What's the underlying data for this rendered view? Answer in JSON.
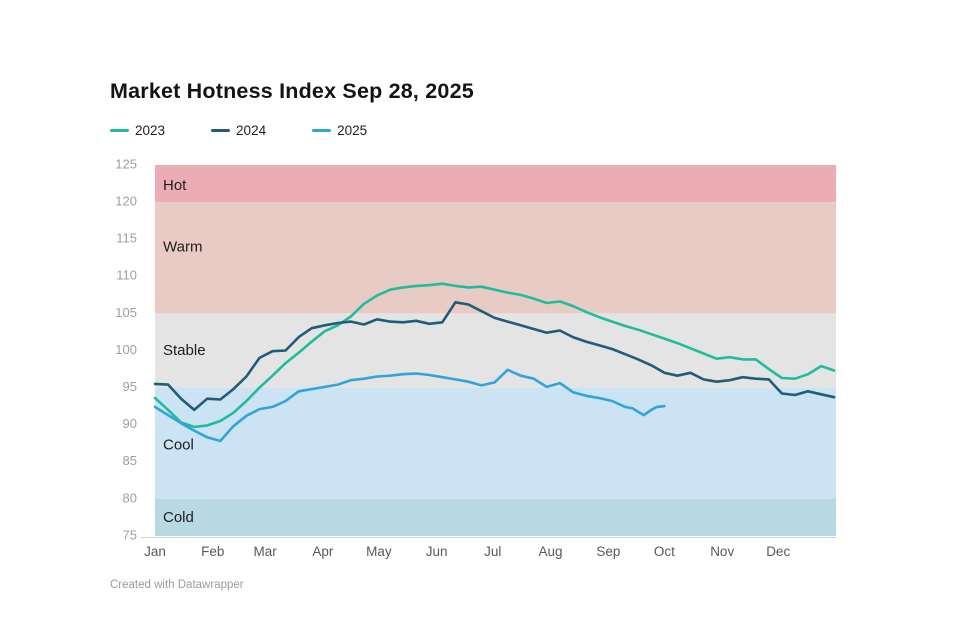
{
  "page": {
    "title": "Market Hotness Index Sep 28, 2025",
    "footer": "Created with Datawrapper"
  },
  "legend": {
    "items": [
      {
        "label": "2023",
        "color": "#1fbd9c"
      },
      {
        "label": "2024",
        "color": "#205d78"
      },
      {
        "label": "2025",
        "color": "#2fa5dc"
      }
    ]
  },
  "chart_data": {
    "type": "line",
    "title": "Market Hotness Index Sep 28, 2025",
    "xlabel": "",
    "ylabel": "",
    "legend_position": "top-left",
    "grid": false,
    "y_axis": {
      "min": 75,
      "max": 125,
      "ticks": [
        75,
        80,
        85,
        90,
        95,
        100,
        105,
        110,
        115,
        120,
        125
      ]
    },
    "x_axis": {
      "max_day": 365,
      "labels": [
        "Jan",
        "Feb",
        "Mar",
        "Apr",
        "May",
        "Jun",
        "Jul",
        "Aug",
        "Sep",
        "Oct",
        "Nov",
        "Dec"
      ],
      "month_start_days": [
        0,
        31,
        59,
        90,
        120,
        151,
        181,
        212,
        243,
        273,
        304,
        334
      ]
    },
    "bands": [
      {
        "label": "Hot",
        "from": 120,
        "to": 125,
        "color": "#ecacb3",
        "label_value": 122.2
      },
      {
        "label": "Warm",
        "from": 105,
        "to": 120,
        "color": "#e9cbc5",
        "label_value": 113.9
      },
      {
        "label": "Stable",
        "from": 95,
        "to": 105,
        "color": "#e4e4e4",
        "label_value": 99.9
      },
      {
        "label": "Cool",
        "from": 80,
        "to": 95,
        "color": "#cbe3f2",
        "label_value": 87.2
      },
      {
        "label": "Cold",
        "from": 75,
        "to": 80,
        "color": "#b8d8e2",
        "label_value": 77.4
      }
    ],
    "series": [
      {
        "name": "2023",
        "color": "#1fbd9c",
        "days": [
          0,
          7,
          14,
          21,
          28,
          35,
          42,
          49,
          56,
          63,
          70,
          77,
          84,
          91,
          98,
          105,
          112,
          119,
          126,
          133,
          140,
          147,
          154,
          161,
          168,
          175,
          182,
          189,
          196,
          203,
          210,
          217,
          224,
          231,
          238,
          245,
          252,
          259,
          266,
          273,
          280,
          287,
          294,
          301,
          308,
          315,
          322,
          329,
          336,
          343,
          350,
          357,
          364
        ],
        "values": [
          93.6,
          92.0,
          90.3,
          89.7,
          89.9,
          90.5,
          91.6,
          93.2,
          95.0,
          96.6,
          98.3,
          99.7,
          101.2,
          102.6,
          103.4,
          104.6,
          106.3,
          107.4,
          108.2,
          108.5,
          108.7,
          108.8,
          109.0,
          108.7,
          108.5,
          108.6,
          108.2,
          107.8,
          107.5,
          107.0,
          106.4,
          106.6,
          106.0,
          105.2,
          104.5,
          103.9,
          103.3,
          102.8,
          102.2,
          101.6,
          101.0,
          100.3,
          99.6,
          98.9,
          99.1,
          98.8,
          98.8,
          97.5,
          96.3,
          96.2,
          96.8,
          97.9,
          97.3
        ]
      },
      {
        "name": "2024",
        "color": "#205d78",
        "days": [
          0,
          7,
          14,
          21,
          28,
          35,
          42,
          49,
          56,
          63,
          70,
          77,
          84,
          91,
          98,
          105,
          112,
          119,
          126,
          133,
          140,
          147,
          154,
          161,
          168,
          175,
          182,
          189,
          196,
          203,
          210,
          217,
          224,
          231,
          238,
          245,
          252,
          259,
          266,
          273,
          280,
          287,
          294,
          301,
          308,
          315,
          322,
          329,
          336,
          343,
          350,
          357,
          364
        ],
        "values": [
          95.5,
          95.4,
          93.5,
          92.0,
          93.5,
          93.4,
          94.8,
          96.5,
          99.0,
          99.9,
          100.0,
          101.8,
          103.0,
          103.4,
          103.7,
          103.9,
          103.5,
          104.2,
          103.9,
          103.8,
          104.0,
          103.6,
          103.8,
          106.5,
          106.2,
          105.3,
          104.4,
          103.9,
          103.4,
          102.9,
          102.4,
          102.7,
          101.8,
          101.2,
          100.7,
          100.2,
          99.5,
          98.8,
          98.0,
          97.0,
          96.6,
          97.0,
          96.1,
          95.8,
          96.0,
          96.4,
          96.2,
          96.1,
          94.2,
          94.0,
          94.5,
          94.1,
          93.7
        ]
      },
      {
        "name": "2025",
        "color": "#2fa5dc",
        "days": [
          0,
          7,
          14,
          21,
          28,
          35,
          42,
          49,
          56,
          63,
          70,
          77,
          84,
          91,
          98,
          105,
          112,
          119,
          126,
          133,
          140,
          147,
          154,
          161,
          168,
          175,
          182,
          189,
          196,
          203,
          210,
          217,
          224,
          231,
          238,
          245,
          252,
          256,
          262,
          266,
          269,
          273
        ],
        "values": [
          92.4,
          91.3,
          90.2,
          89.2,
          88.3,
          87.8,
          89.8,
          91.2,
          92.1,
          92.4,
          93.2,
          94.5,
          94.8,
          95.1,
          95.4,
          96.0,
          96.2,
          96.5,
          96.6,
          96.8,
          96.9,
          96.7,
          96.4,
          96.1,
          95.8,
          95.3,
          95.7,
          97.4,
          96.6,
          96.2,
          95.1,
          95.6,
          94.4,
          93.9,
          93.6,
          93.2,
          92.4,
          92.2,
          91.3,
          92.0,
          92.4,
          92.5
        ]
      }
    ]
  }
}
